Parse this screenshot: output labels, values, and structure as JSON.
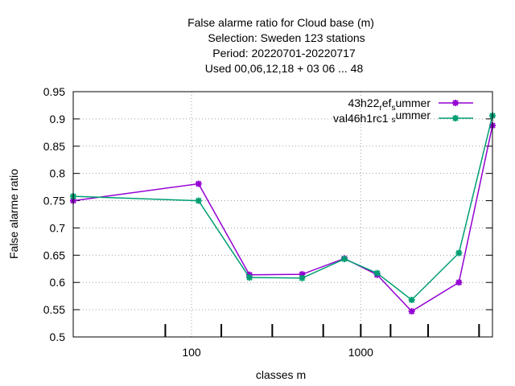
{
  "chart_data": {
    "type": "line",
    "title_lines": [
      "False alarme ratio  for Cloud base (m)",
      "Selection: Sweden     123 stations",
      "Period: 20220701-20220717",
      "Used  00,06,12,18  + 03 06 ... 48"
    ],
    "xlabel": "classes m",
    "ylabel": "False alarme ratio",
    "xscale": "log",
    "xlim": [
      20,
      6000
    ],
    "ylim": [
      0.5,
      0.95
    ],
    "x_ticks": [
      {
        "value": 100,
        "label": "100"
      },
      {
        "value": 1000,
        "label": "1000"
      }
    ],
    "y_ticks": [
      {
        "value": 0.5,
        "label": "0.5"
      },
      {
        "value": 0.55,
        "label": "0.55"
      },
      {
        "value": 0.6,
        "label": "0.6"
      },
      {
        "value": 0.65,
        "label": "0.65"
      },
      {
        "value": 0.7,
        "label": "0.7"
      },
      {
        "value": 0.75,
        "label": "0.75"
      },
      {
        "value": 0.8,
        "label": "0.8"
      },
      {
        "value": 0.85,
        "label": "0.85"
      },
      {
        "value": 0.9,
        "label": "0.9"
      },
      {
        "value": 0.95,
        "label": "0.95"
      }
    ],
    "bottom_tick_marks": [
      70,
      150,
      300,
      600,
      1000,
      1500,
      2500,
      5000
    ],
    "grid": true,
    "legend_position": "top-right",
    "x": [
      20,
      110,
      220,
      450,
      800,
      1250,
      2000,
      3800,
      6000
    ],
    "series": [
      {
        "name_base": "43h22",
        "name_sub1": "r",
        "name_mid": "ef",
        "name_sub2": "s",
        "name_end": "ummer",
        "color": "#9400d3",
        "values": [
          0.75,
          0.781,
          0.614,
          0.615,
          0.644,
          0.614,
          0.547,
          0.6,
          0.888
        ]
      },
      {
        "name_base": "val46h1rc1",
        "name_sub1": "",
        "name_mid": " ",
        "name_sub2": "s",
        "name_end": "ummer",
        "color": "#009e73",
        "values": [
          0.758,
          0.75,
          0.609,
          0.608,
          0.643,
          0.617,
          0.568,
          0.654,
          0.906
        ]
      }
    ]
  }
}
